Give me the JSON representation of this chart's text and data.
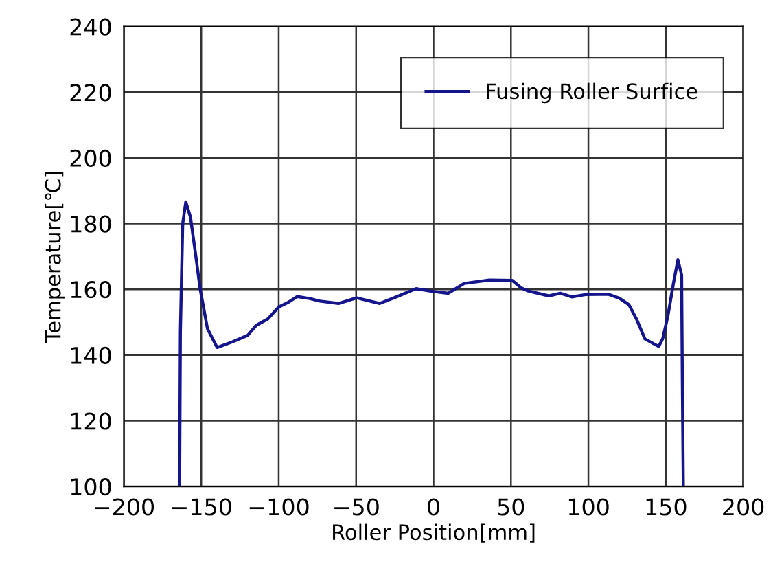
{
  "chart_data": {
    "type": "line",
    "xlabel": "Roller Position[mm]",
    "ylabel": "Temperature[℃]",
    "xlim": [
      -200,
      200
    ],
    "xticks": [
      {
        "value": -200,
        "label": "−200"
      },
      {
        "value": -150,
        "label": "−150"
      },
      {
        "value": -100,
        "label": "−100"
      },
      {
        "value": -50,
        "label": "−50"
      },
      0,
      50,
      100,
      150,
      200
    ],
    "ylim": [
      100,
      240
    ],
    "yticks": [
      100,
      120,
      140,
      160,
      180,
      200,
      220,
      240
    ],
    "grid": true,
    "legend": "top right",
    "marker": "none",
    "line_style": "solid",
    "series": [
      {
        "name": "Fusing Roller Surfice",
        "color": "#14148c",
        "x": [
          -164,
          -163.5,
          -162,
          -160,
          -157,
          -153.5,
          -150.7,
          -146,
          -139.8,
          -130,
          -120,
          -114.6,
          -107,
          -100,
          -94,
          -88,
          -80,
          -73.3,
          -61.4,
          -49.6,
          -42,
          -34.8,
          -25,
          -11.3,
          -2.4,
          9.5,
          19.8,
          36,
          50.8,
          56.7,
          61.2,
          74.5,
          81.8,
          89.3,
          98.1,
          112.9,
          120,
          126.2,
          131,
          136.5,
          145.4,
          148,
          151.3,
          155,
          157.8,
          160.2,
          160.7,
          161.3
        ],
        "values": [
          100,
          147,
          180,
          186.6,
          182,
          170,
          160,
          148,
          142.3,
          144,
          146,
          149,
          151,
          154.6,
          156,
          157.8,
          157.2,
          156.4,
          155.7,
          157.4,
          156.5,
          155.7,
          157.5,
          160.2,
          159.5,
          158.8,
          161.8,
          162.8,
          162.7,
          160.4,
          159.5,
          158,
          158.8,
          157.7,
          158.4,
          158.5,
          157.3,
          155.3,
          151,
          144.9,
          142.6,
          145,
          151.8,
          162,
          169,
          164.4,
          131,
          100
        ]
      }
    ]
  }
}
